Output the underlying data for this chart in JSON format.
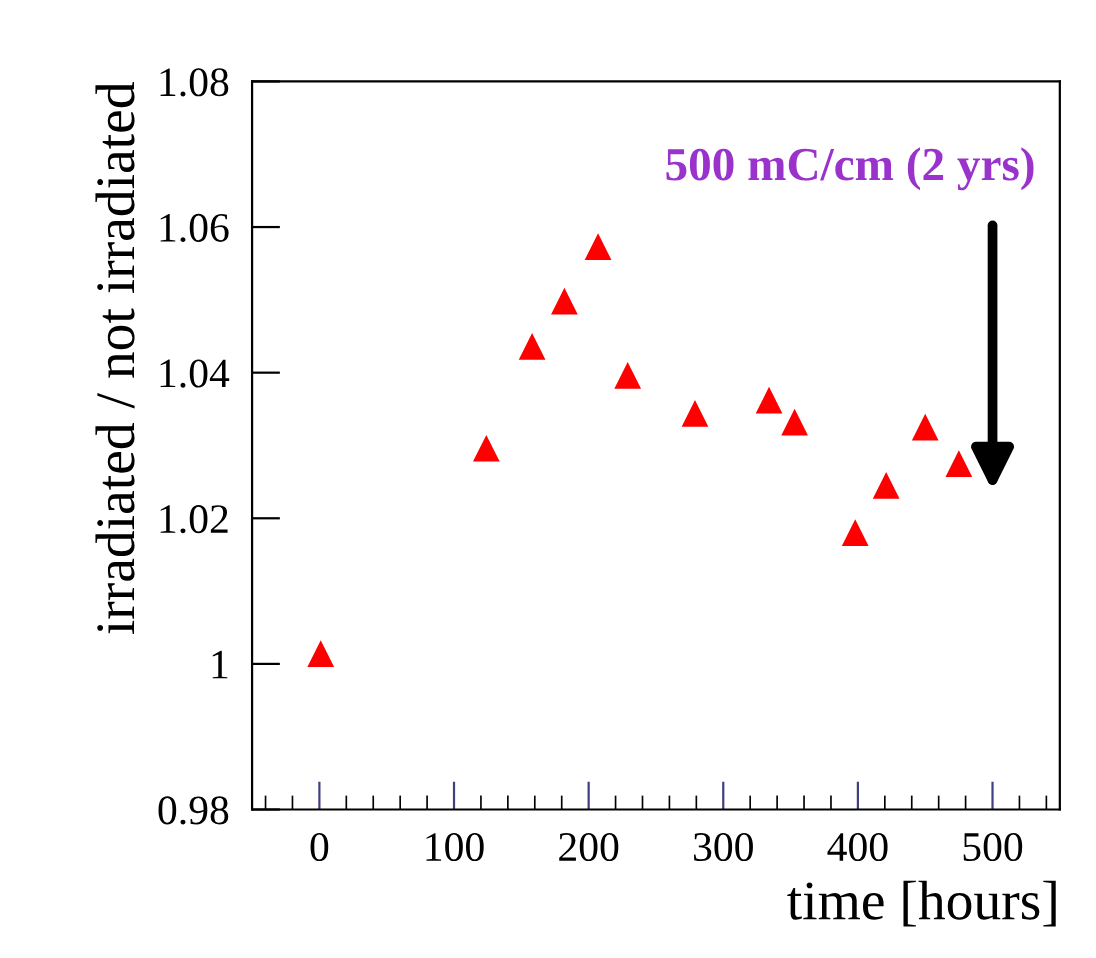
{
  "chart_data": {
    "type": "scatter",
    "xlabel": "time [hours]",
    "ylabel": "irradiated / not irradiated",
    "x": [
      1,
      124,
      158,
      182,
      207,
      229,
      279,
      334,
      353,
      398,
      421,
      450,
      475
    ],
    "series": [
      {
        "color": "#ff0000",
        "values": [
          1.0013,
          1.0295,
          1.0435,
          1.0497,
          1.0572,
          1.0395,
          1.0343,
          1.0361,
          1.0331,
          1.0179,
          1.0244,
          1.0324,
          1.0274
        ]
      }
    ],
    "marker": "triangle",
    "xlim": [
      -50,
      550
    ],
    "ylim": [
      0.98,
      1.08
    ],
    "xticks": [
      0,
      100,
      200,
      300,
      400,
      500
    ],
    "yticks": [
      0.98,
      1,
      1.02,
      1.04,
      1.06,
      1.08
    ],
    "grid": false,
    "legend": false,
    "annotations": [
      "500 mC/cm (2 yrs)"
    ]
  }
}
